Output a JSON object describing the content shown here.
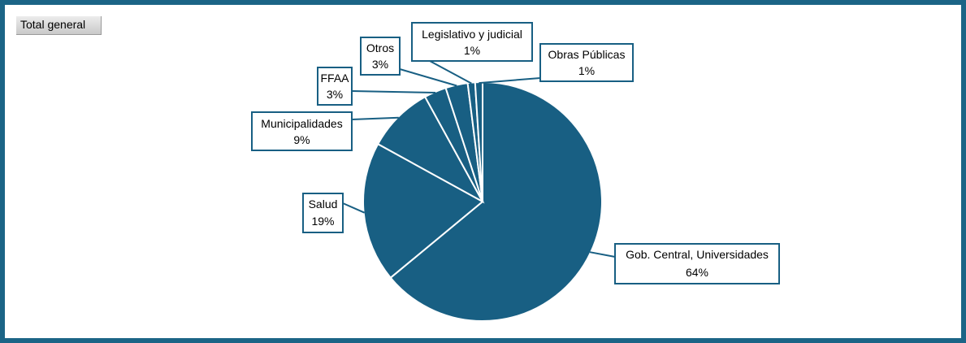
{
  "filter_label": "Total general",
  "colors": {
    "frame": "#1b6486",
    "slice": "#185f83",
    "slice_border": "#ffffff",
    "callout_border": "#185f83",
    "callout_fill": "#ffffff"
  },
  "chart_data": {
    "type": "pie",
    "title": "",
    "categories": [
      "Gob. Central, Universidades",
      "Salud",
      "Municipalidades",
      "FFAA",
      "Otros",
      "Legislativo y judicial",
      "Obras Públicas"
    ],
    "values": [
      64,
      19,
      9,
      3,
      3,
      1,
      1
    ],
    "labels": [
      "64%",
      "19%",
      "9%",
      "3%",
      "3%",
      "1%",
      "1%"
    ],
    "legend": "none",
    "data_labels": "callouts"
  }
}
